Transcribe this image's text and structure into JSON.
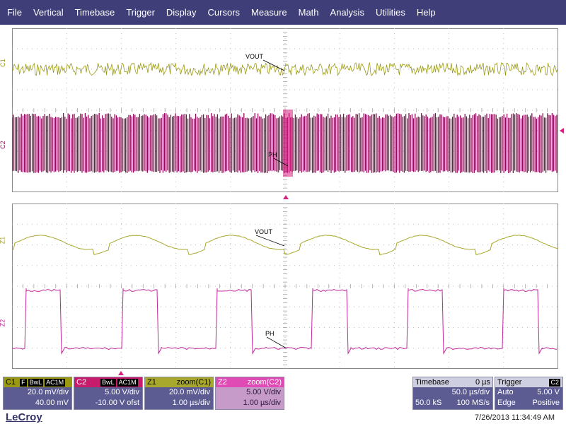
{
  "menu": [
    "File",
    "Vertical",
    "Timebase",
    "Trigger",
    "Display",
    "Cursors",
    "Measure",
    "Math",
    "Analysis",
    "Utilities",
    "Help"
  ],
  "colors": {
    "c1": "#9a9a12",
    "c2": "#8f0a57",
    "z1": "#a8a82c",
    "z2": "#c1269a",
    "grid": "#8a8a8a",
    "menubar": "#3f3e79",
    "panel": "#5c5b92",
    "marker": "#d4217f"
  },
  "channel_labels": {
    "c1": "C1",
    "c2": "C2",
    "z1": "Z1",
    "z2": "Z2"
  },
  "annotations": {
    "vout_top": "VOUT",
    "ph_top": "PH",
    "vout_zoom": "VOUT",
    "ph_zoom": "PH"
  },
  "panels": {
    "c1": {
      "name": "C1",
      "tags": [
        "F",
        "BwL",
        "AC1M"
      ],
      "line1": "20.0 mV/div",
      "line2": "40.00 mV"
    },
    "c2": {
      "name": "C2",
      "tags": [
        "BwL",
        "AC1M"
      ],
      "line1": "5.00 V/div",
      "line2": "-10.00 V ofst"
    },
    "z1": {
      "name": "Z1",
      "title": "zoom(C1)",
      "line1": "20.0 mV/div",
      "line2": "1.00 µs/div"
    },
    "z2": {
      "name": "Z2",
      "title": "zoom(C2)",
      "line1": "5.00 V/div",
      "line2": "1.00 µs/div"
    },
    "timebase": {
      "title": "Timebase",
      "offset": "0 µs",
      "line1": "50.0 µs/div",
      "sample_points": "50.0 kS",
      "sample_rate": "100 MS/s"
    },
    "trigger": {
      "title": "Trigger",
      "channel": "C2",
      "mode": "Auto",
      "level": "5.00 V",
      "type": "Edge",
      "slope": "Positive"
    }
  },
  "footer": {
    "logo": "LeCroy",
    "timestamp": "7/26/2013 11:34:49 AM"
  }
}
